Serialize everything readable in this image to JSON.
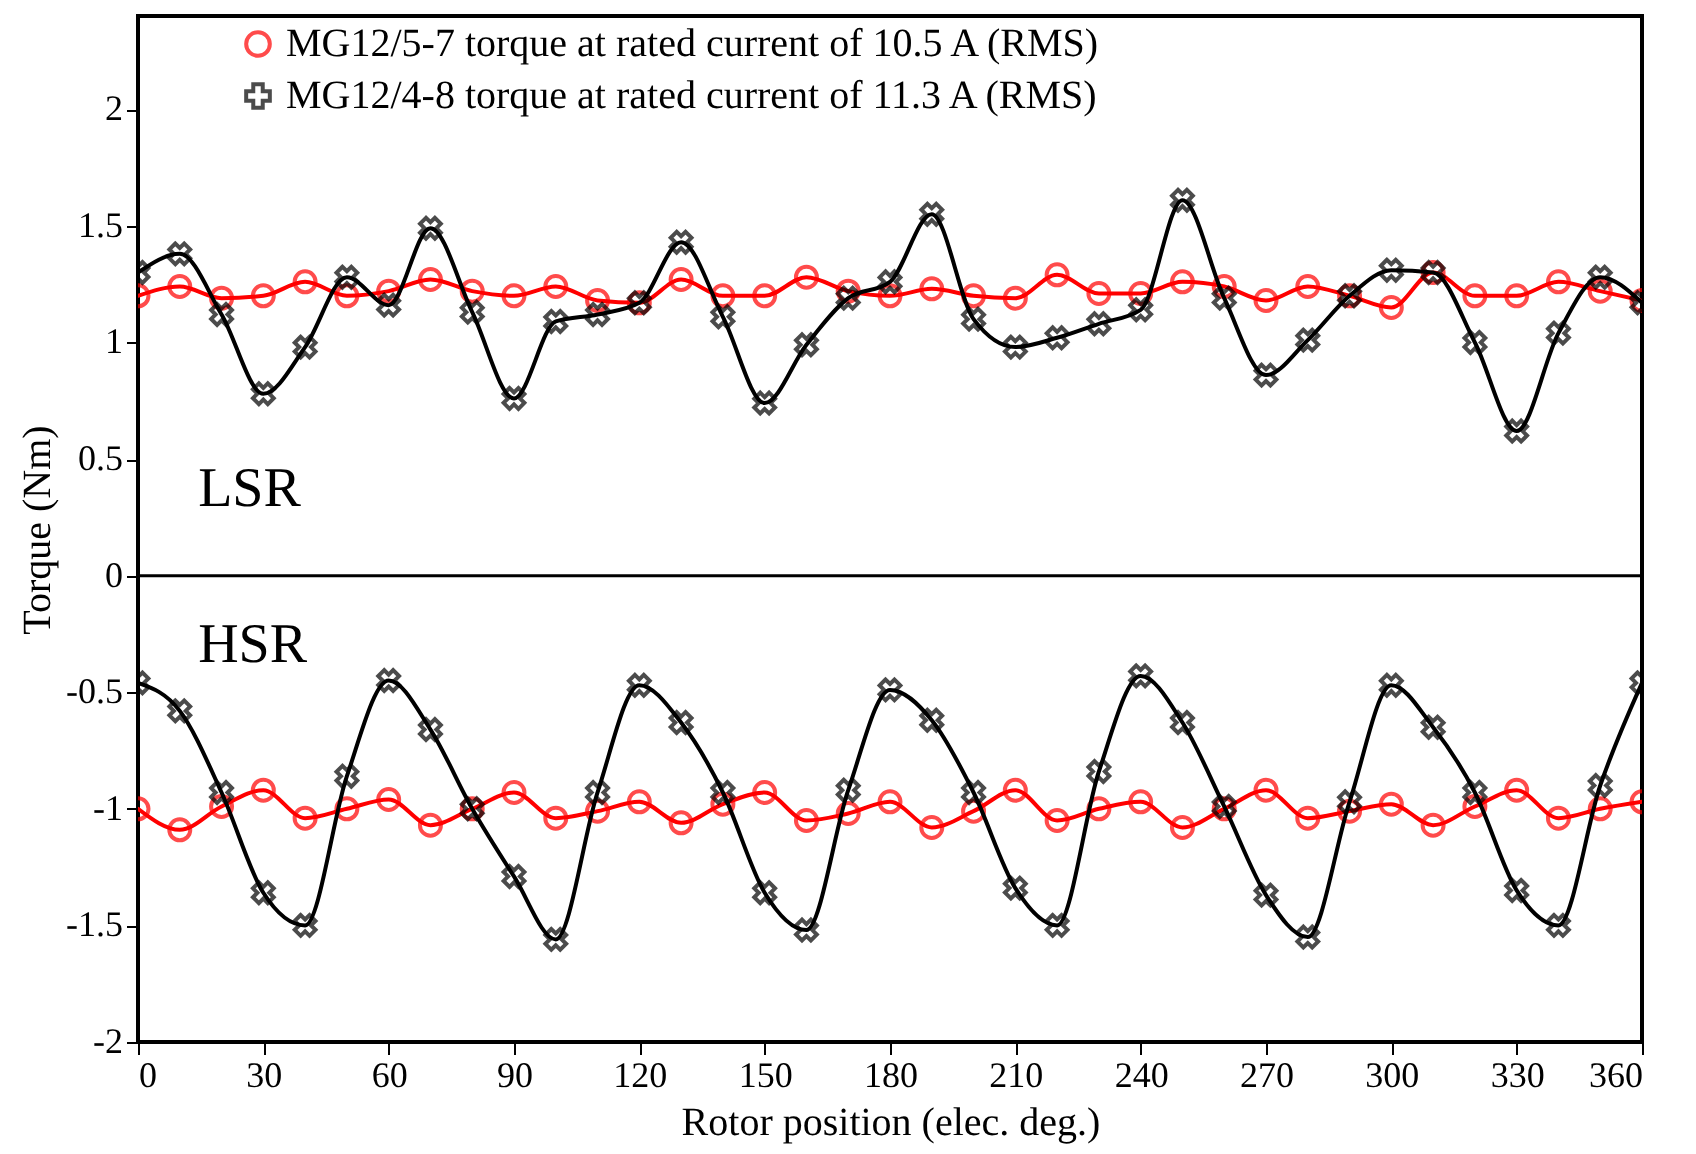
{
  "chart_data": {
    "type": "line",
    "xlabel": "Rotor position (elec. deg.)",
    "ylabel": "Torque (Nm)",
    "x": [
      0,
      10,
      20,
      30,
      40,
      50,
      60,
      70,
      80,
      90,
      100,
      110,
      120,
      130,
      140,
      150,
      160,
      170,
      180,
      190,
      200,
      210,
      220,
      230,
      240,
      250,
      260,
      270,
      280,
      290,
      300,
      310,
      320,
      330,
      340,
      350,
      360
    ],
    "series": [
      {
        "name": "MG12/5-7 torque at rated  current of 10.5 A (RMS)",
        "color": "#ff0000",
        "marker": "circle",
        "values": [
          1.2,
          1.24,
          1.19,
          1.2,
          1.26,
          1.2,
          1.22,
          1.27,
          1.22,
          1.2,
          1.24,
          1.18,
          1.17,
          1.27,
          1.2,
          1.2,
          1.28,
          1.22,
          1.2,
          1.23,
          1.2,
          1.19,
          1.29,
          1.21,
          1.21,
          1.26,
          1.24,
          1.18,
          1.24,
          1.2,
          1.15,
          1.3,
          1.2,
          1.2,
          1.26,
          1.22,
          1.18
        ]
      },
      {
        "name": "MG12/4-8 torque at rated  current of 11.3 A (RMS)",
        "color": "#000000",
        "marker": "cross",
        "values": [
          1.3,
          1.38,
          1.12,
          0.78,
          0.98,
          1.28,
          1.16,
          1.49,
          1.13,
          0.76,
          1.09,
          1.12,
          1.17,
          1.43,
          1.11,
          0.74,
          0.99,
          1.19,
          1.26,
          1.55,
          1.1,
          0.98,
          1.02,
          1.08,
          1.14,
          1.61,
          1.19,
          0.86,
          1.01,
          1.2,
          1.31,
          1.3,
          1.0,
          0.62,
          1.04,
          1.28,
          1.17
        ]
      },
      {
        "color": "#ff0000",
        "marker": "circle",
        "values": [
          -1,
          -1.09,
          -0.99,
          -0.92,
          -1.04,
          -1,
          -0.96,
          -1.07,
          -1,
          -0.93,
          -1.04,
          -1.01,
          -0.97,
          -1.06,
          -0.98,
          -0.93,
          -1.05,
          -1.02,
          -0.97,
          -1.08,
          -1.01,
          -0.92,
          -1.05,
          -1,
          -0.97,
          -1.08,
          -1,
          -0.92,
          -1.04,
          -1.01,
          -0.98,
          -1.07,
          -0.99,
          -0.92,
          -1.04,
          -1,
          -0.97
        ]
      },
      {
        "color": "#000000",
        "marker": "cross",
        "values": [
          -0.46,
          -0.58,
          -0.93,
          -1.36,
          -1.5,
          -0.86,
          -0.45,
          -0.66,
          -1,
          -1.29,
          -1.56,
          -0.93,
          -0.47,
          -0.63,
          -0.93,
          -1.36,
          -1.52,
          -0.92,
          -0.49,
          -0.62,
          -0.93,
          -1.34,
          -1.5,
          -0.84,
          -0.43,
          -0.63,
          -0.99,
          -1.37,
          -1.55,
          -0.97,
          -0.47,
          -0.65,
          -0.93,
          -1.35,
          -1.5,
          -0.9,
          -0.46
        ]
      }
    ],
    "xlim": [
      0,
      360
    ],
    "xticks": [
      0,
      30,
      60,
      90,
      120,
      150,
      180,
      210,
      240,
      270,
      300,
      330,
      360
    ],
    "ylim": [
      -2,
      2.4
    ],
    "yticks": [
      -2,
      -1.5,
      -1,
      -0.5,
      0,
      0.5,
      1,
      1.5,
      2
    ],
    "ref_lines": [
      {
        "axis": "y",
        "value": 0,
        "color": "#000000"
      }
    ],
    "annotations": [
      "LSR",
      "HSR"
    ],
    "grid": false,
    "legend": "top"
  }
}
